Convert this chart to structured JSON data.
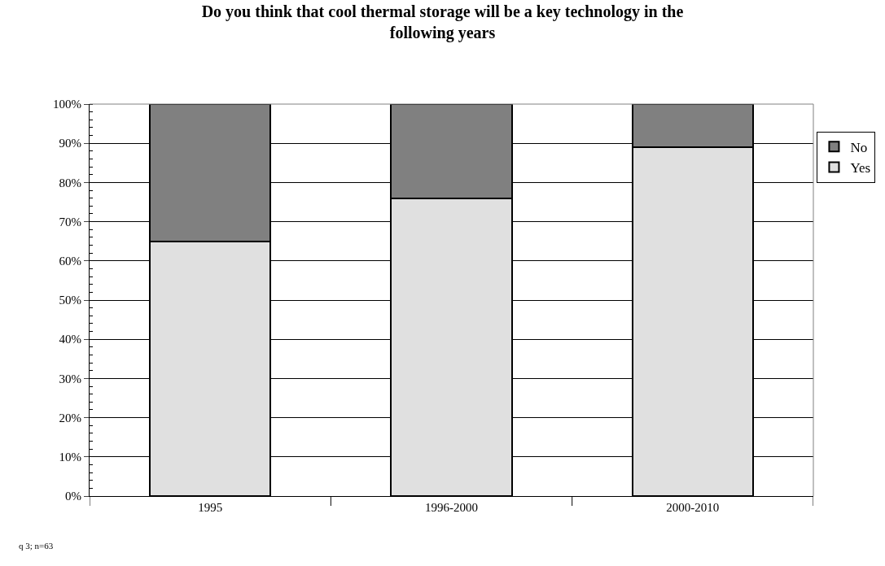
{
  "chart_data": {
    "type": "bar",
    "title": "Do you think that cool thermal storage will be a key technology in the\nfollowing years",
    "categories": [
      "1995",
      "1996-2000",
      "2000-2010"
    ],
    "stacked": true,
    "series": [
      {
        "name": "Yes",
        "color": "#e0e0e0",
        "values": [
          65,
          76,
          89
        ]
      },
      {
        "name": "No",
        "color": "#808080",
        "values": [
          35,
          24,
          11
        ]
      }
    ],
    "ylim": [
      0,
      100
    ],
    "yticks": [
      {
        "value": 0,
        "label": "0%"
      },
      {
        "value": 10,
        "label": "10%"
      },
      {
        "value": 20,
        "label": "20%"
      },
      {
        "value": 30,
        "label": "30%"
      },
      {
        "value": 40,
        "label": "40%"
      },
      {
        "value": 50,
        "label": "50%"
      },
      {
        "value": 60,
        "label": "60%"
      },
      {
        "value": 70,
        "label": "70%"
      },
      {
        "value": 80,
        "label": "80%"
      },
      {
        "value": 90,
        "label": "90%"
      },
      {
        "value": 100,
        "label": "100%"
      }
    ],
    "grid": "y",
    "legend": "right",
    "annotations": [
      "q 3; n=63"
    ]
  }
}
